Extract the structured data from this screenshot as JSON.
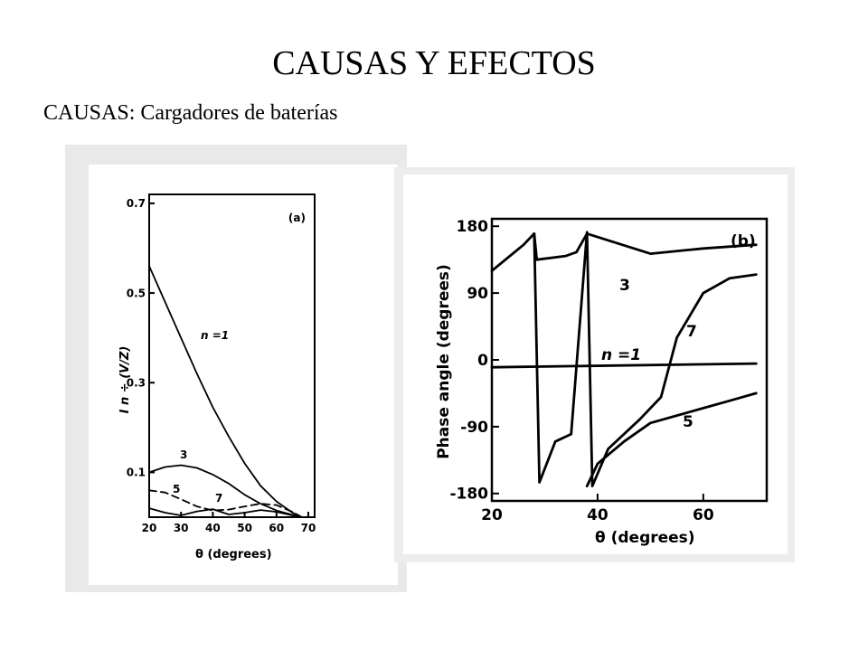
{
  "slide": {
    "title": "CAUSAS  Y EFECTOS",
    "subtitle": "CAUSAS: Cargadores de baterías"
  },
  "chart_data": [
    {
      "type": "line",
      "panel_label": "(a)",
      "xlabel": "θ (degrees)",
      "ylabel": "I n ÷ (V/Z)",
      "xlim": [
        20,
        72
      ],
      "ylim": [
        0,
        0.72
      ],
      "x_ticks": [
        "20",
        "30",
        "40",
        "50",
        "60",
        "70"
      ],
      "y_ticks": [
        "0.1",
        "0.3",
        "0.5",
        "0.7"
      ],
      "series": [
        {
          "name": "n =1",
          "style": "solid",
          "x": [
            20,
            25,
            30,
            35,
            40,
            45,
            50,
            55,
            60,
            65,
            68
          ],
          "y": [
            0.56,
            0.48,
            0.4,
            0.32,
            0.245,
            0.18,
            0.12,
            0.07,
            0.035,
            0.01,
            0
          ]
        },
        {
          "name": "3",
          "style": "solid",
          "x": [
            20,
            25,
            30,
            35,
            40,
            45,
            50,
            55,
            60,
            65,
            68
          ],
          "y": [
            0.1,
            0.112,
            0.116,
            0.11,
            0.095,
            0.075,
            0.05,
            0.03,
            0.015,
            0.005,
            0
          ]
        },
        {
          "name": "5",
          "style": "dashed",
          "x": [
            20,
            25,
            30,
            35,
            40,
            45,
            50,
            55,
            60,
            65,
            68
          ],
          "y": [
            0.06,
            0.055,
            0.04,
            0.024,
            0.015,
            0.017,
            0.024,
            0.03,
            0.027,
            0.012,
            0
          ]
        },
        {
          "name": "7",
          "style": "solid",
          "x": [
            20,
            25,
            30,
            35,
            40,
            45,
            50,
            55,
            60,
            65,
            68
          ],
          "y": [
            0.02,
            0.01,
            0.004,
            0.013,
            0.018,
            0.006,
            0.01,
            0.016,
            0.012,
            0.004,
            0
          ]
        }
      ]
    },
    {
      "type": "line",
      "panel_label": "(b)",
      "xlabel": "θ (degrees)",
      "ylabel": "Phase angle (degrees)",
      "xlim": [
        20,
        72
      ],
      "ylim": [
        -190,
        190
      ],
      "x_ticks": [
        "20",
        "40",
        "60"
      ],
      "y_ticks": [
        "180",
        "90",
        "0",
        "-90",
        "-180"
      ],
      "series": [
        {
          "name": "3",
          "x": [
            20,
            26,
            28,
            28.5,
            34,
            36,
            38,
            50,
            60,
            70
          ],
          "y": [
            120,
            155,
            170,
            135,
            140,
            145,
            170,
            143,
            150,
            155
          ]
        },
        {
          "name": "n =1",
          "x": [
            20,
            70
          ],
          "y": [
            -10,
            -5
          ]
        },
        {
          "name": "7",
          "x": [
            28,
            29,
            32,
            35,
            38,
            39,
            42,
            48,
            52,
            55,
            60,
            65,
            70
          ],
          "y": [
            170,
            -165,
            -110,
            -100,
            172,
            -170,
            -120,
            -80,
            -50,
            30,
            90,
            110,
            115
          ]
        },
        {
          "name": "5",
          "x": [
            38,
            40,
            45,
            50,
            55,
            60,
            65,
            70
          ],
          "y": [
            -170,
            -140,
            -110,
            -85,
            -75,
            -65,
            -55,
            -45
          ]
        }
      ]
    }
  ]
}
